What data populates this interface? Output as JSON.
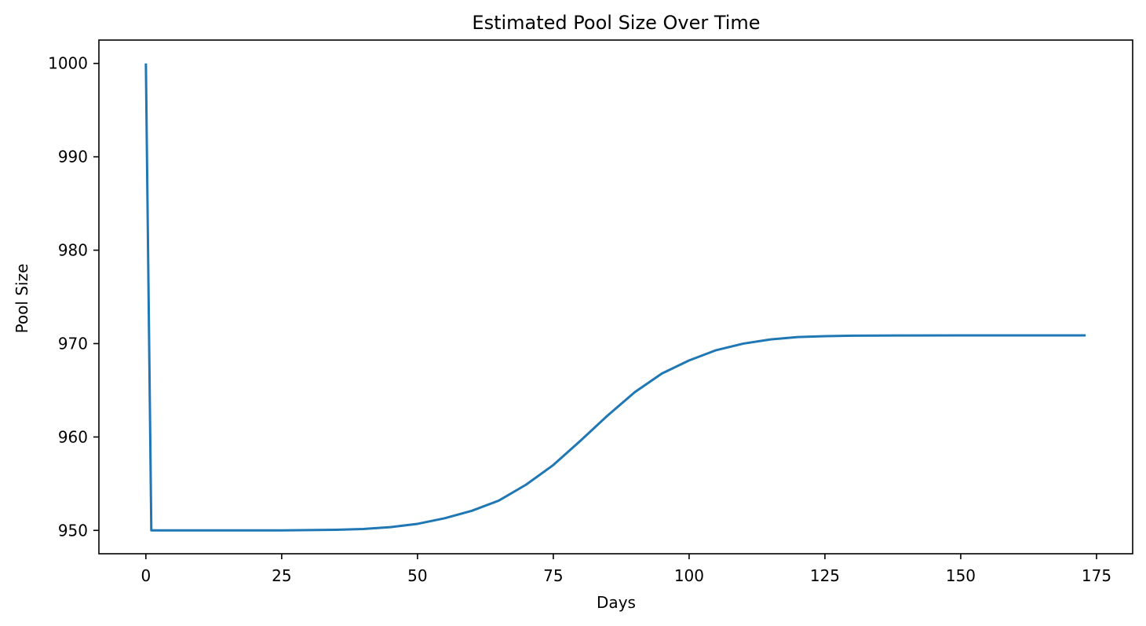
{
  "chart_data": {
    "type": "line",
    "title": "Estimated Pool Size Over Time",
    "xlabel": "Days",
    "ylabel": "Pool Size",
    "xlim": [
      -8.65,
      181.65
    ],
    "ylim": [
      947.5,
      1002.5
    ],
    "xticks": [
      0,
      25,
      50,
      75,
      100,
      125,
      150,
      175
    ],
    "yticks": [
      950,
      960,
      970,
      980,
      990,
      1000
    ],
    "grid": false,
    "legend": "none",
    "series": [
      {
        "color": "#1f77b4",
        "x": [
          0,
          1,
          5,
          10,
          15,
          20,
          25,
          30,
          35,
          40,
          45,
          50,
          55,
          60,
          65,
          70,
          75,
          80,
          85,
          90,
          95,
          100,
          105,
          110,
          115,
          120,
          125,
          130,
          140,
          150,
          160,
          173
        ],
        "y": [
          1000,
          950,
          950,
          950,
          950,
          950,
          950,
          950.03,
          950.06,
          950.15,
          950.35,
          950.7,
          951.3,
          952.1,
          953.2,
          954.9,
          957.0,
          959.6,
          962.3,
          964.8,
          966.8,
          968.2,
          969.3,
          970.0,
          970.45,
          970.7,
          970.8,
          970.85,
          970.87,
          970.88,
          970.88,
          970.88
        ]
      }
    ]
  }
}
